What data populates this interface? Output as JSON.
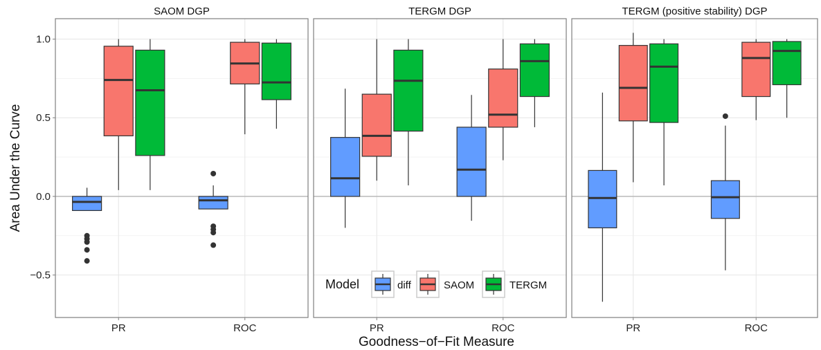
{
  "chart_data": {
    "type": "boxplot",
    "xlabel": "Goodness−of−Fit Measure",
    "ylabel": "Area Under the Curve",
    "ylim": [
      -0.77,
      1.13
    ],
    "yticks": [
      -0.5,
      0.0,
      0.5,
      1.0
    ],
    "ytick_labels": [
      "−0.5",
      "0.0",
      "0.5",
      "1.0"
    ],
    "categories": [
      "PR",
      "ROC"
    ],
    "legend": {
      "title": "Model",
      "position": "bottom of middle panel",
      "entries": [
        {
          "label": "diff",
          "color": "#619CFF"
        },
        {
          "label": "SAOM",
          "color": "#F8766D"
        },
        {
          "label": "TERGM",
          "color": "#00BA38"
        }
      ]
    },
    "series_order": [
      "diff",
      "SAOM",
      "TERGM"
    ],
    "panels": [
      {
        "title": "SAOM DGP",
        "groups": [
          {
            "category": "PR",
            "boxes": [
              {
                "model": "diff",
                "whisker_low": -0.09,
                "q1": -0.09,
                "median": -0.035,
                "q3": 0.0,
                "whisker_high": 0.055,
                "outliers": [
                  -0.25,
                  -0.27,
                  -0.29,
                  -0.34,
                  -0.41
                ]
              },
              {
                "model": "SAOM",
                "whisker_low": 0.04,
                "q1": 0.385,
                "median": 0.74,
                "q3": 0.955,
                "whisker_high": 1.0,
                "outliers": []
              },
              {
                "model": "TERGM",
                "whisker_low": 0.04,
                "q1": 0.26,
                "median": 0.675,
                "q3": 0.93,
                "whisker_high": 1.0,
                "outliers": []
              }
            ]
          },
          {
            "category": "ROC",
            "boxes": [
              {
                "model": "diff",
                "whisker_low": -0.08,
                "q1": -0.08,
                "median": -0.025,
                "q3": 0.0,
                "whisker_high": 0.07,
                "outliers": [
                  0.145,
                  -0.19,
                  -0.21,
                  -0.23,
                  -0.31
                ]
              },
              {
                "model": "SAOM",
                "whisker_low": 0.395,
                "q1": 0.715,
                "median": 0.845,
                "q3": 0.98,
                "whisker_high": 1.0,
                "outliers": []
              },
              {
                "model": "TERGM",
                "whisker_low": 0.43,
                "q1": 0.615,
                "median": 0.725,
                "q3": 0.975,
                "whisker_high": 1.0,
                "outliers": []
              }
            ]
          }
        ]
      },
      {
        "title": "TERGM DGP",
        "groups": [
          {
            "category": "PR",
            "boxes": [
              {
                "model": "diff",
                "whisker_low": -0.2,
                "q1": 0.0,
                "median": 0.115,
                "q3": 0.375,
                "whisker_high": 0.685,
                "outliers": []
              },
              {
                "model": "SAOM",
                "whisker_low": 0.1,
                "q1": 0.255,
                "median": 0.385,
                "q3": 0.65,
                "whisker_high": 1.0,
                "outliers": []
              },
              {
                "model": "TERGM",
                "whisker_low": 0.07,
                "q1": 0.415,
                "median": 0.735,
                "q3": 0.93,
                "whisker_high": 1.0,
                "outliers": []
              }
            ]
          },
          {
            "category": "ROC",
            "boxes": [
              {
                "model": "diff",
                "whisker_low": -0.155,
                "q1": 0.0,
                "median": 0.17,
                "q3": 0.44,
                "whisker_high": 0.645,
                "outliers": []
              },
              {
                "model": "SAOM",
                "whisker_low": 0.23,
                "q1": 0.44,
                "median": 0.52,
                "q3": 0.81,
                "whisker_high": 1.0,
                "outliers": []
              },
              {
                "model": "TERGM",
                "whisker_low": 0.44,
                "q1": 0.635,
                "median": 0.86,
                "q3": 0.97,
                "whisker_high": 1.0,
                "outliers": []
              }
            ]
          }
        ]
      },
      {
        "title": "TERGM (positive stability) DGP",
        "groups": [
          {
            "category": "PR",
            "boxes": [
              {
                "model": "diff",
                "whisker_low": -0.67,
                "q1": -0.2,
                "median": -0.01,
                "q3": 0.165,
                "whisker_high": 0.66,
                "outliers": []
              },
              {
                "model": "SAOM",
                "whisker_low": 0.09,
                "q1": 0.48,
                "median": 0.69,
                "q3": 0.96,
                "whisker_high": 1.04,
                "outliers": []
              },
              {
                "model": "TERGM",
                "whisker_low": 0.07,
                "q1": 0.47,
                "median": 0.825,
                "q3": 0.97,
                "whisker_high": 1.0,
                "outliers": []
              }
            ]
          },
          {
            "category": "ROC",
            "boxes": [
              {
                "model": "diff",
                "whisker_low": -0.47,
                "q1": -0.14,
                "median": -0.005,
                "q3": 0.1,
                "whisker_high": 0.45,
                "outliers": [
                  0.51
                ]
              },
              {
                "model": "SAOM",
                "whisker_low": 0.485,
                "q1": 0.635,
                "median": 0.88,
                "q3": 0.98,
                "whisker_high": 1.0,
                "outliers": []
              },
              {
                "model": "TERGM",
                "whisker_low": 0.5,
                "q1": 0.71,
                "median": 0.925,
                "q3": 0.985,
                "whisker_high": 1.0,
                "outliers": []
              }
            ]
          }
        ]
      }
    ]
  }
}
